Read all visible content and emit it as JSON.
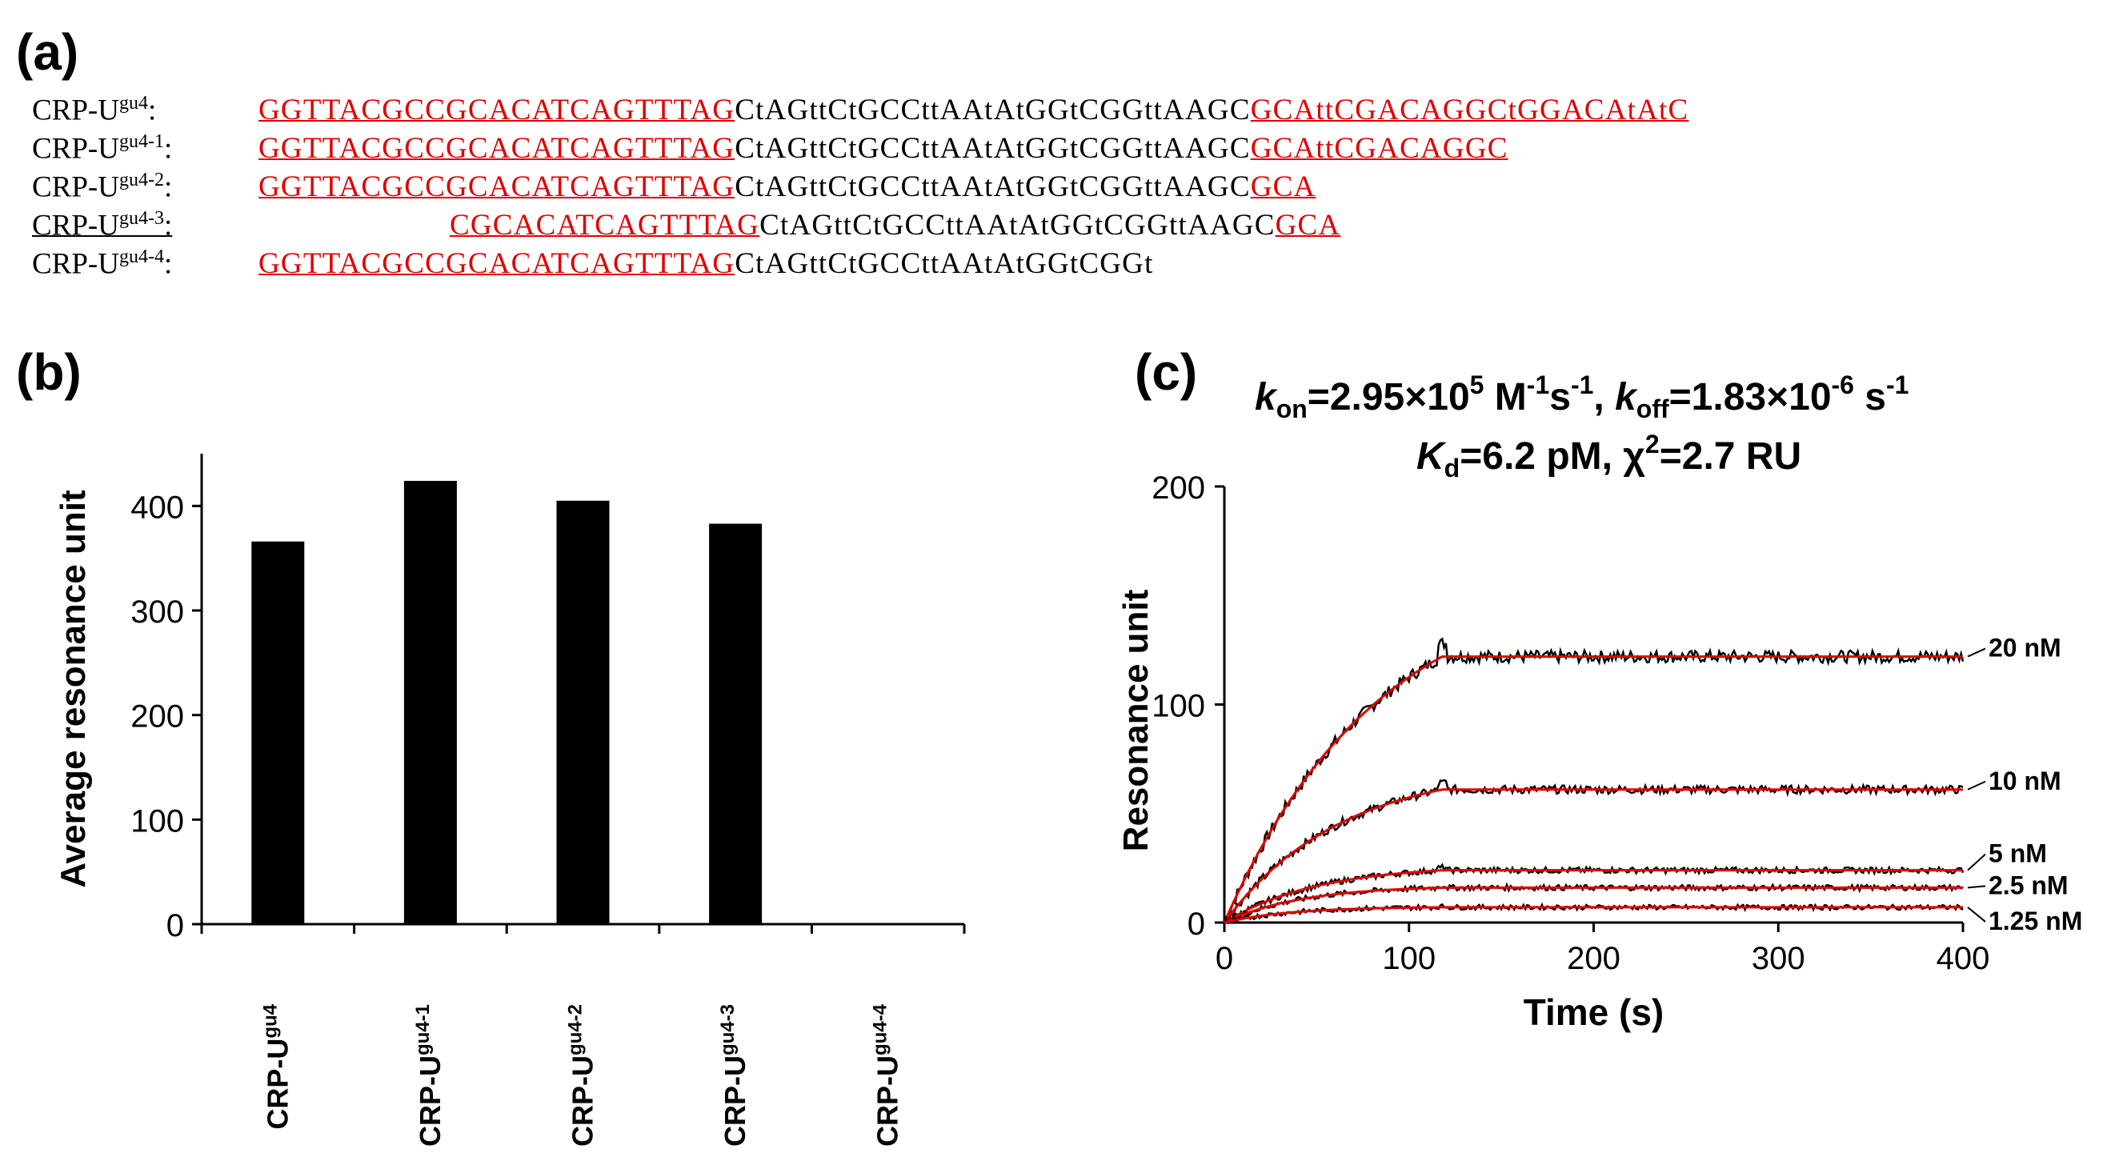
{
  "panels": {
    "a": "(a)",
    "b": "(b)",
    "c": "(c)"
  },
  "sequences": [
    {
      "name": "CRP-U",
      "sup": "gu4",
      "colon": ":",
      "offset": false,
      "parts": [
        {
          "t": "GGTTACGCCGCACATCAGTTTAG",
          "red": true
        },
        {
          "t": "CtAGttCtGCCttAAtAtGGtCGGttAAGC",
          "red": false
        },
        {
          "t": "GCAttCGACAGGCtGGACAtAtC",
          "red": true
        }
      ]
    },
    {
      "name": "CRP-U",
      "sup": "gu4-1",
      "colon": ":",
      "offset": false,
      "parts": [
        {
          "t": "GGTTACGCCGCACATCAGTTTAG",
          "red": true
        },
        {
          "t": "CtAGttCtGCCttAAtAtGGtCGGttAAGC",
          "red": false
        },
        {
          "t": "GCAttCGACAGGC",
          "red": true
        }
      ]
    },
    {
      "name": "CRP-U",
      "sup": "gu4-2",
      "colon": ":",
      "offset": false,
      "parts": [
        {
          "t": "GGTTACGCCGCACATCAGTTTAG",
          "red": true
        },
        {
          "t": "CtAGttCtGCCttAAtAtGGtCGGttAAGC",
          "red": false
        },
        {
          "t": "GCA",
          "red": true
        }
      ]
    },
    {
      "name": "CRP-U",
      "sup": "gu4-3",
      "colon": ":",
      "offset": true,
      "underline_name": true,
      "parts": [
        {
          "t": "CGCACATCAGTTTAG",
          "red": true
        },
        {
          "t": "CtAGttCtGCCttAAtAtGGtCGGttAAGC",
          "red": false
        },
        {
          "t": "GCA",
          "red": true
        }
      ]
    },
    {
      "name": "CRP-U",
      "sup": "gu4-4",
      "colon": ":",
      "offset": false,
      "parts": [
        {
          "t": "GGTTACGCCGCACATCAGTTTAG",
          "red": true
        },
        {
          "t": "CtAGttCtGCCttAAtAtGGtCGGt",
          "red": false
        }
      ]
    }
  ],
  "colors": {
    "seq_highlight": "#e00000",
    "bar": "#000000",
    "fit_line": "#e00000",
    "data_line": "#000000"
  },
  "chart_data": [
    {
      "type": "bar",
      "ylabel": "Average resonance unit",
      "ylim": [
        0,
        450
      ],
      "yticks": [
        0,
        100,
        200,
        300,
        400
      ],
      "categories": [
        {
          "base": "CRP-U",
          "sup": "gu4"
        },
        {
          "base": "CRP-U",
          "sup": "gu4-1"
        },
        {
          "base": "CRP-U",
          "sup": "gu4-2"
        },
        {
          "base": "CRP-U",
          "sup": "gu4-3"
        },
        {
          "base": "CRP-U",
          "sup": "gu4-4"
        }
      ],
      "values": [
        366,
        424,
        405,
        383,
        0
      ]
    },
    {
      "type": "line",
      "title_line1": {
        "kon_k": "k",
        "kon_sub": "on",
        "kon_val": "=2.95×10",
        "kon_exp": "5",
        "kon_unit1": " M",
        "kon_unit1_exp": "-1",
        "kon_unit2": "s",
        "kon_unit2_exp": "-1",
        "sep": ", ",
        "koff_k": "k",
        "koff_sub": "off",
        "koff_val": "=1.83×10",
        "koff_exp": "-6",
        "koff_unit": " s",
        "koff_unit_exp": "-1"
      },
      "title_line2": {
        "kd_k": "K",
        "kd_sub": "d",
        "kd_val": "=6.2 pM, χ",
        "chi_exp": "2",
        "chi_val": "=2.7 RU"
      },
      "xlabel": "Time (s)",
      "ylabel": "Resonance unit",
      "xlim": [
        0,
        400
      ],
      "ylim": [
        0,
        200
      ],
      "xticks": [
        0,
        100,
        200,
        300,
        400
      ],
      "yticks": [
        0,
        100,
        200
      ],
      "association_end": 118,
      "series": [
        {
          "name": "20 nM",
          "plateau": 122
        },
        {
          "name": "10 nM",
          "plateau": 61
        },
        {
          "name": "5 nM",
          "plateau": 24
        },
        {
          "name": "2.5 nM",
          "plateau": 16
        },
        {
          "name": "1.25 nM",
          "plateau": 7
        }
      ]
    }
  ]
}
